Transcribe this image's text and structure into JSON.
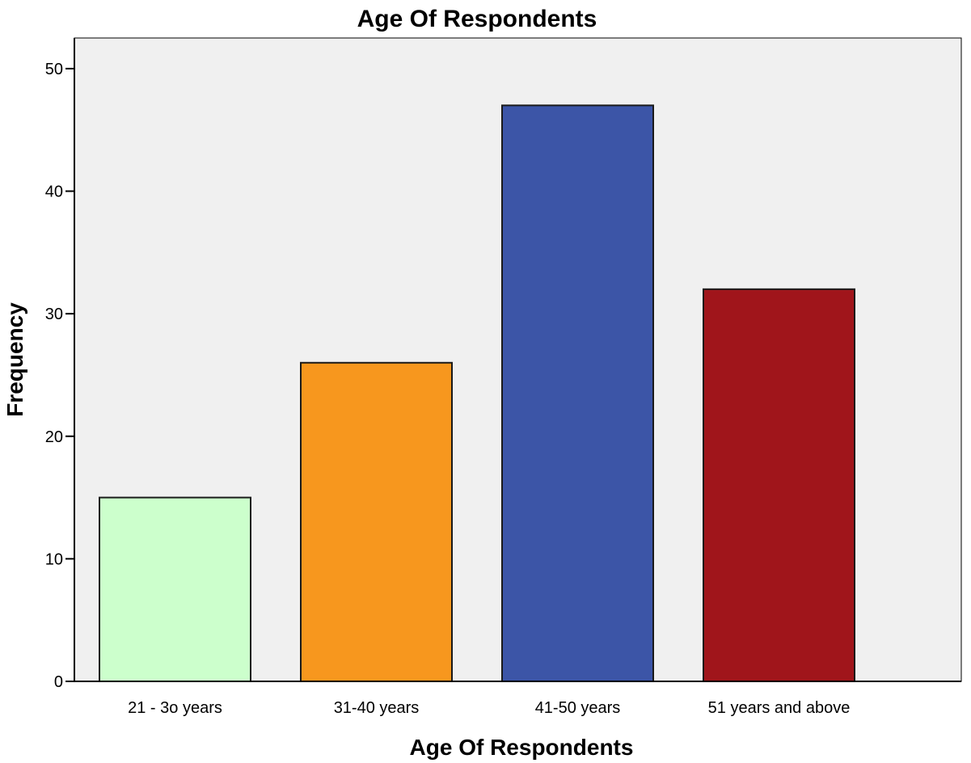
{
  "chart_data": {
    "type": "bar",
    "title": "Age Of Respondents",
    "xlabel": "Age Of Respondents",
    "ylabel": "Frequency",
    "categories": [
      "21 - 3o years",
      "31-40 years",
      "41-50 years",
      "51 years and above"
    ],
    "values": [
      15,
      26,
      47,
      32
    ],
    "colors": [
      "#ccffcc",
      "#f7971e",
      "#3c55a7",
      "#a0151b"
    ],
    "ylim": [
      0,
      52.5
    ],
    "yticks": [
      0,
      10,
      20,
      30,
      40,
      50
    ],
    "grid": false,
    "legend": "none",
    "plot_background": "#f0f0f0"
  }
}
